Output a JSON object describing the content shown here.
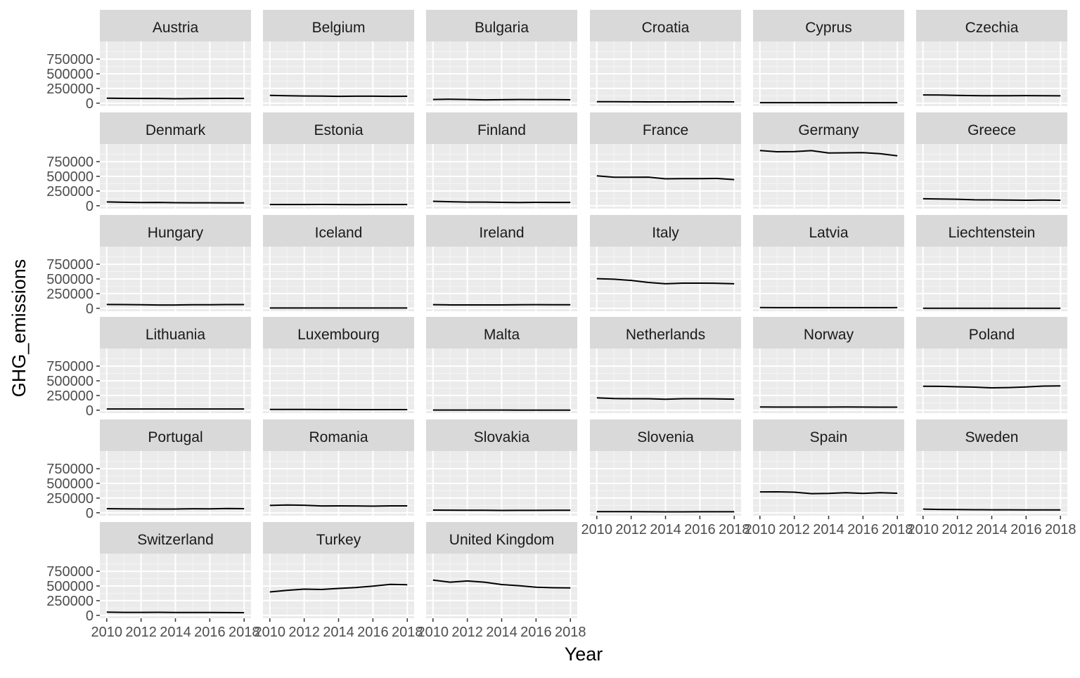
{
  "chart_data": {
    "type": "line",
    "faceted": true,
    "xlabel": "Year",
    "ylabel": "GHG_emissions",
    "x": [
      2010,
      2011,
      2012,
      2013,
      2014,
      2015,
      2016,
      2017,
      2018
    ],
    "x_ticks": [
      2010,
      2012,
      2014,
      2016,
      2018
    ],
    "x_tick_labels": [
      "2010",
      "2012",
      "2014",
      "2016",
      "2018"
    ],
    "xlim": [
      2009.6,
      2018.4
    ],
    "y_ticks": [
      0,
      250000,
      500000,
      750000
    ],
    "y_tick_labels": [
      "0",
      "250000",
      "500000",
      "750000"
    ],
    "ylim": [
      -50000,
      1050000
    ],
    "grid": true,
    "line_color": "#000000",
    "panel_background": "#ebebeb",
    "strip_background": "#d9d9d9",
    "series": [
      {
        "name": "Austria",
        "values": [
          85000,
          82000,
          80000,
          80000,
          76000,
          79000,
          80000,
          82000,
          80000
        ]
      },
      {
        "name": "Belgium",
        "values": [
          132000,
          126000,
          122000,
          121000,
          116000,
          118000,
          118000,
          116000,
          117000
        ]
      },
      {
        "name": "Bulgaria",
        "values": [
          62000,
          67000,
          62000,
          56000,
          59000,
          62000,
          60000,
          61000,
          58000
        ]
      },
      {
        "name": "Croatia",
        "values": [
          25000,
          24000,
          23000,
          22000,
          22000,
          22000,
          23000,
          23000,
          22000
        ]
      },
      {
        "name": "Cyprus",
        "values": [
          9000,
          9000,
          8000,
          8000,
          8000,
          9000,
          9000,
          9000,
          9000
        ]
      },
      {
        "name": "Czechia",
        "values": [
          140000,
          138000,
          133000,
          128000,
          126000,
          127000,
          128000,
          127000,
          125000
        ]
      },
      {
        "name": "Denmark",
        "values": [
          65000,
          59000,
          54000,
          56000,
          52000,
          50000,
          51000,
          49000,
          48000
        ]
      },
      {
        "name": "Estonia",
        "values": [
          21000,
          21000,
          20000,
          22000,
          21000,
          18000,
          20000,
          21000,
          20000
        ]
      },
      {
        "name": "Finland",
        "values": [
          76000,
          68000,
          62000,
          62000,
          58000,
          55000,
          58000,
          56000,
          57000
        ]
      },
      {
        "name": "France",
        "values": [
          510000,
          485000,
          485000,
          487000,
          458000,
          461000,
          460000,
          464000,
          445000
        ]
      },
      {
        "name": "Germany",
        "values": [
          940000,
          918000,
          921000,
          938000,
          897000,
          900000,
          904000,
          885000,
          849000
        ]
      },
      {
        "name": "Greece",
        "values": [
          118000,
          114000,
          110000,
          101000,
          99000,
          96000,
          93000,
          96000,
          93000
        ]
      },
      {
        "name": "Hungary",
        "values": [
          65000,
          63000,
          60000,
          57000,
          57000,
          60000,
          61000,
          63000,
          64000
        ]
      },
      {
        "name": "Iceland",
        "values": [
          5000,
          5000,
          5000,
          5000,
          5000,
          5000,
          5000,
          5000,
          5000
        ]
      },
      {
        "name": "Ireland",
        "values": [
          62000,
          58000,
          58000,
          58000,
          58000,
          60000,
          62000,
          61000,
          61000
        ]
      },
      {
        "name": "Italy",
        "values": [
          505000,
          495000,
          475000,
          440000,
          418000,
          428000,
          428000,
          426000,
          418000
        ]
      },
      {
        "name": "Latvia",
        "values": [
          12000,
          11000,
          11000,
          11000,
          11000,
          11000,
          11000,
          11000,
          12000
        ]
      },
      {
        "name": "Liechtenstein",
        "values": [
          200,
          200,
          200,
          200,
          200,
          200,
          200,
          200,
          200
        ]
      },
      {
        "name": "Lithuania",
        "values": [
          20000,
          21000,
          21000,
          20000,
          20000,
          20000,
          20000,
          21000,
          21000
        ]
      },
      {
        "name": "Luxembourg",
        "values": [
          12000,
          12000,
          12000,
          11000,
          11000,
          10000,
          10000,
          10000,
          10000
        ]
      },
      {
        "name": "Malta",
        "values": [
          3000,
          3000,
          3000,
          3000,
          3000,
          2000,
          2000,
          2000,
          2000
        ]
      },
      {
        "name": "Netherlands",
        "values": [
          210000,
          198000,
          195000,
          195000,
          187000,
          195000,
          195000,
          193000,
          188000
        ]
      },
      {
        "name": "Norway",
        "values": [
          54000,
          53000,
          53000,
          53000,
          53000,
          54000,
          53000,
          52000,
          52000
        ]
      },
      {
        "name": "Poland",
        "values": [
          408000,
          405000,
          398000,
          392000,
          380000,
          385000,
          395000,
          410000,
          413000
        ]
      },
      {
        "name": "Portugal",
        "values": [
          70000,
          67000,
          65000,
          64000,
          64000,
          68000,
          67000,
          72000,
          69000
        ]
      },
      {
        "name": "Romania",
        "values": [
          125000,
          132000,
          128000,
          116000,
          117000,
          116000,
          113000,
          117000,
          117000
        ]
      },
      {
        "name": "Slovakia",
        "values": [
          46000,
          45000,
          43000,
          42000,
          40000,
          41000,
          41000,
          43000,
          43000
        ]
      },
      {
        "name": "Slovenia",
        "values": [
          19000,
          19000,
          18000,
          17000,
          16000,
          16000,
          17000,
          17000,
          17000
        ]
      },
      {
        "name": "Spain",
        "values": [
          355000,
          357000,
          350000,
          325000,
          329000,
          342000,
          330000,
          341000,
          333000
        ]
      },
      {
        "name": "Sweden",
        "values": [
          62000,
          57000,
          54000,
          52000,
          50000,
          50000,
          49000,
          49000,
          48000
        ]
      },
      {
        "name": "Switzerland",
        "values": [
          54000,
          50000,
          51000,
          52000,
          48000,
          48000,
          48000,
          47000,
          46000
        ]
      },
      {
        "name": "Turkey",
        "values": [
          398000,
          425000,
          446000,
          440000,
          458000,
          474000,
          496000,
          526000,
          521000
        ]
      },
      {
        "name": "United Kingdom",
        "values": [
          600000,
          565000,
          585000,
          565000,
          524000,
          505000,
          480000,
          470000,
          466000
        ]
      }
    ]
  }
}
